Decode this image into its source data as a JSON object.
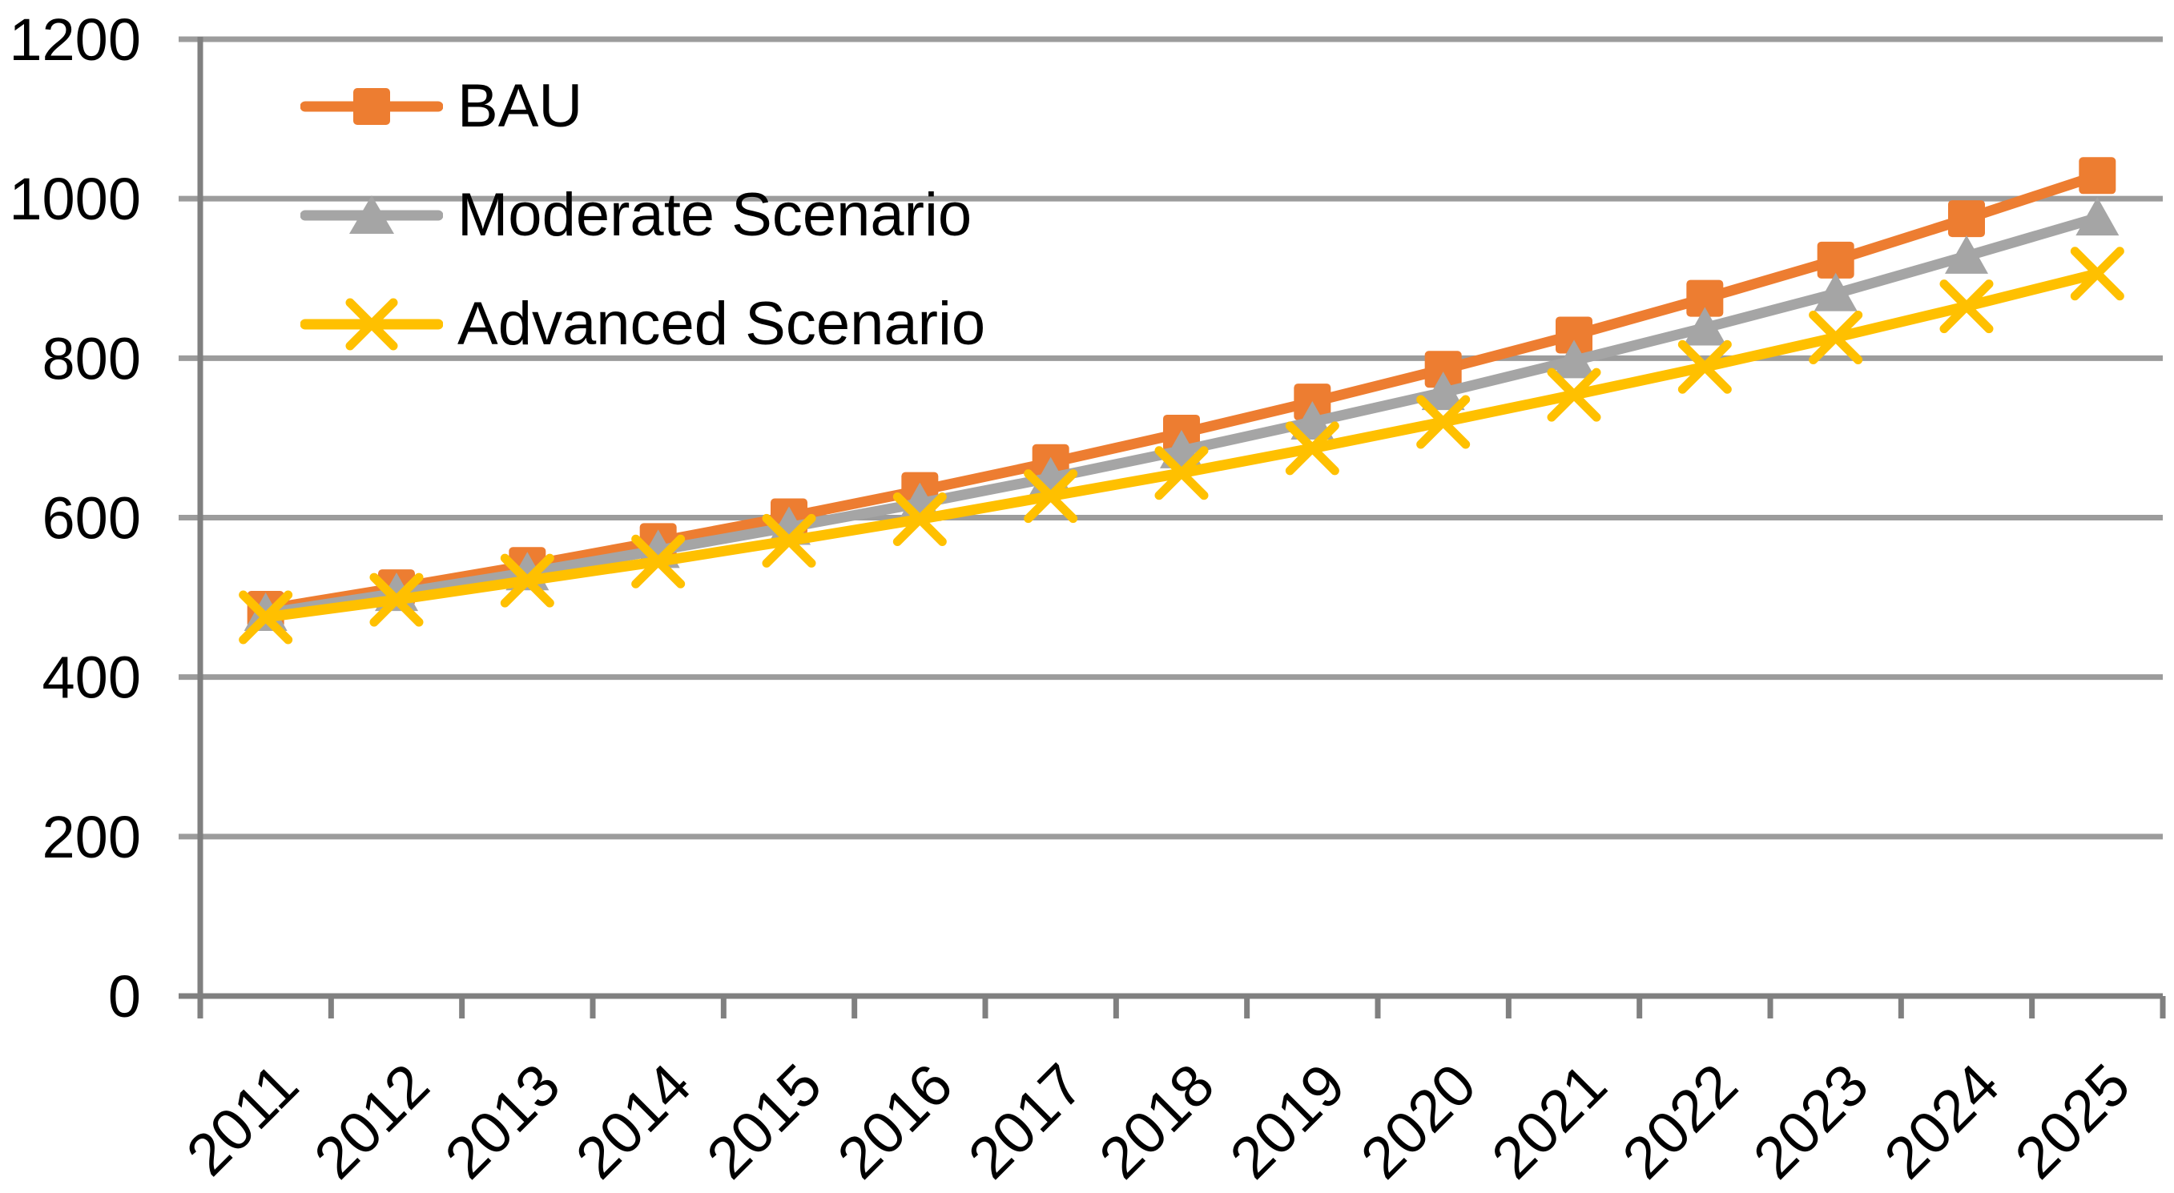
{
  "chart_data": {
    "type": "line",
    "title": "",
    "xlabel": "",
    "ylabel": "",
    "categories": [
      "2011",
      "2012",
      "2013",
      "2014",
      "2015",
      "2016",
      "2017",
      "2018",
      "2019",
      "2020",
      "2021",
      "2022",
      "2023",
      "2024",
      "2025"
    ],
    "series": [
      {
        "name": "BAU",
        "color": "#ED7D31",
        "marker": "square",
        "values": [
          485,
          512,
          540,
          570,
          601,
          634,
          669,
          706,
          745,
          786,
          829,
          875,
          923,
          975,
          1029
        ]
      },
      {
        "name": "Moderate Scenario",
        "color": "#A5A5A5",
        "marker": "triangle",
        "values": [
          480,
          505,
          531,
          559,
          588,
          618,
          650,
          684,
          720,
          757,
          797,
          838,
          881,
          928,
          976
        ]
      },
      {
        "name": "Advanced Scenario",
        "color": "#FFC000",
        "marker": "x",
        "values": [
          475,
          497,
          521,
          545,
          571,
          598,
          627,
          656,
          687,
          720,
          754,
          789,
          826,
          865,
          906
        ]
      }
    ],
    "ylim": [
      0,
      1200
    ],
    "y_ticks": [
      "0",
      "200",
      "400",
      "600",
      "800",
      "1000",
      "1200"
    ],
    "x_label_rotation_deg": 45,
    "grid": "horizontal",
    "legend_position": "inside-top-left",
    "colors": {
      "gridline": "#9C9C9C",
      "axis": "#808080",
      "label": "#000000",
      "background": "#FFFFFF"
    }
  }
}
